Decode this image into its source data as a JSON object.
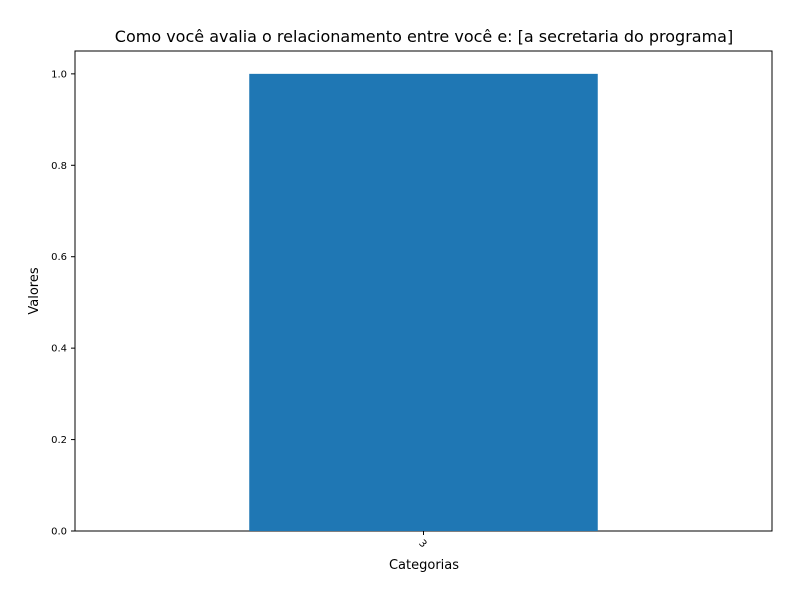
{
  "chart_data": {
    "type": "bar",
    "title": "Como você avalia o relacionamento entre você e: [a secretaria do programa]",
    "xlabel": "Categorias",
    "ylabel": "Valores",
    "categories": [
      "3"
    ],
    "values": [
      1.0
    ],
    "ylim": [
      0,
      1.05
    ],
    "yticks": [
      "0.0",
      "0.2",
      "0.4",
      "0.6",
      "0.8",
      "1.0"
    ],
    "grid": false,
    "legend": "none",
    "bar_color": "#1f77b4",
    "xtick_rotation": "45deg"
  }
}
